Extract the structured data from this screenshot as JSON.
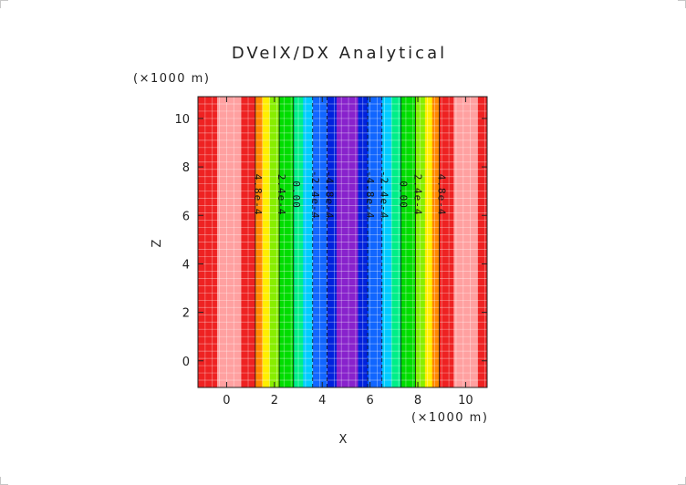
{
  "chart_data": {
    "type": "heatmap",
    "title": "DVelX/DX Analytical",
    "xlabel": "X",
    "ylabel": "Z",
    "x_unit": "(×1000 m)",
    "y_unit": "(×1000 m)",
    "xlim": [
      -1.2,
      10.9
    ],
    "ylim": [
      -1.1,
      10.9
    ],
    "x_ticks": [
      0,
      2,
      4,
      6,
      8,
      10
    ],
    "y_ticks": [
      0,
      2,
      4,
      6,
      8,
      10
    ],
    "x_tick_labels": [
      "0",
      "2",
      "4",
      "6",
      "8",
      "10"
    ],
    "y_tick_labels": [
      "0",
      "2",
      "4",
      "6",
      "8",
      "10"
    ],
    "grid": true,
    "bands": [
      {
        "x0": -1.2,
        "x1": -0.4,
        "color": "#ee2222"
      },
      {
        "x0": -0.4,
        "x1": 0.6,
        "color": "#ffa0a0"
      },
      {
        "x0": 0.6,
        "x1": 1.2,
        "color": "#ee2222"
      },
      {
        "x0": 1.2,
        "x1": 1.5,
        "color": "#ff8800"
      },
      {
        "x0": 1.5,
        "x1": 1.8,
        "color": "#ffee00"
      },
      {
        "x0": 1.8,
        "x1": 2.2,
        "color": "#88ee00"
      },
      {
        "x0": 2.2,
        "x1": 2.8,
        "color": "#00dd00"
      },
      {
        "x0": 2.8,
        "x1": 3.2,
        "color": "#00ee88"
      },
      {
        "x0": 3.2,
        "x1": 3.6,
        "color": "#00ccff"
      },
      {
        "x0": 3.6,
        "x1": 4.2,
        "color": "#1166ff"
      },
      {
        "x0": 4.2,
        "x1": 4.6,
        "color": "#0022dd"
      },
      {
        "x0": 4.6,
        "x1": 5.5,
        "color": "#8822cc"
      },
      {
        "x0": 5.5,
        "x1": 5.9,
        "color": "#0022dd"
      },
      {
        "x0": 5.9,
        "x1": 6.5,
        "color": "#1166ff"
      },
      {
        "x0": 6.5,
        "x1": 6.9,
        "color": "#00ccff"
      },
      {
        "x0": 6.9,
        "x1": 7.3,
        "color": "#00ee88"
      },
      {
        "x0": 7.3,
        "x1": 7.9,
        "color": "#00dd00"
      },
      {
        "x0": 7.9,
        "x1": 8.3,
        "color": "#88ee00"
      },
      {
        "x0": 8.3,
        "x1": 8.6,
        "color": "#ffee00"
      },
      {
        "x0": 8.6,
        "x1": 8.9,
        "color": "#ff8800"
      },
      {
        "x0": 8.9,
        "x1": 9.5,
        "color": "#ee2222"
      },
      {
        "x0": 9.5,
        "x1": 10.5,
        "color": "#ffa0a0"
      },
      {
        "x0": 10.5,
        "x1": 10.9,
        "color": "#ee2222"
      }
    ],
    "contours": [
      {
        "x": 1.2,
        "label": "4.8e-4",
        "dashed": false
      },
      {
        "x": 2.2,
        "label": "2.4e-4",
        "dashed": false
      },
      {
        "x": 2.8,
        "label": "0.00",
        "dashed": false
      },
      {
        "x": 3.6,
        "label": "-2.4e-4",
        "dashed": true
      },
      {
        "x": 4.2,
        "label": "-4.8e-4",
        "dashed": true
      },
      {
        "x": 5.9,
        "label": "-4.8e-4",
        "dashed": true
      },
      {
        "x": 6.5,
        "label": "-2.4e-4",
        "dashed": true
      },
      {
        "x": 7.3,
        "label": "0.00",
        "dashed": false
      },
      {
        "x": 7.9,
        "label": "2.4e-4",
        "dashed": false
      },
      {
        "x": 8.9,
        "label": "4.8e-4",
        "dashed": false
      }
    ]
  }
}
